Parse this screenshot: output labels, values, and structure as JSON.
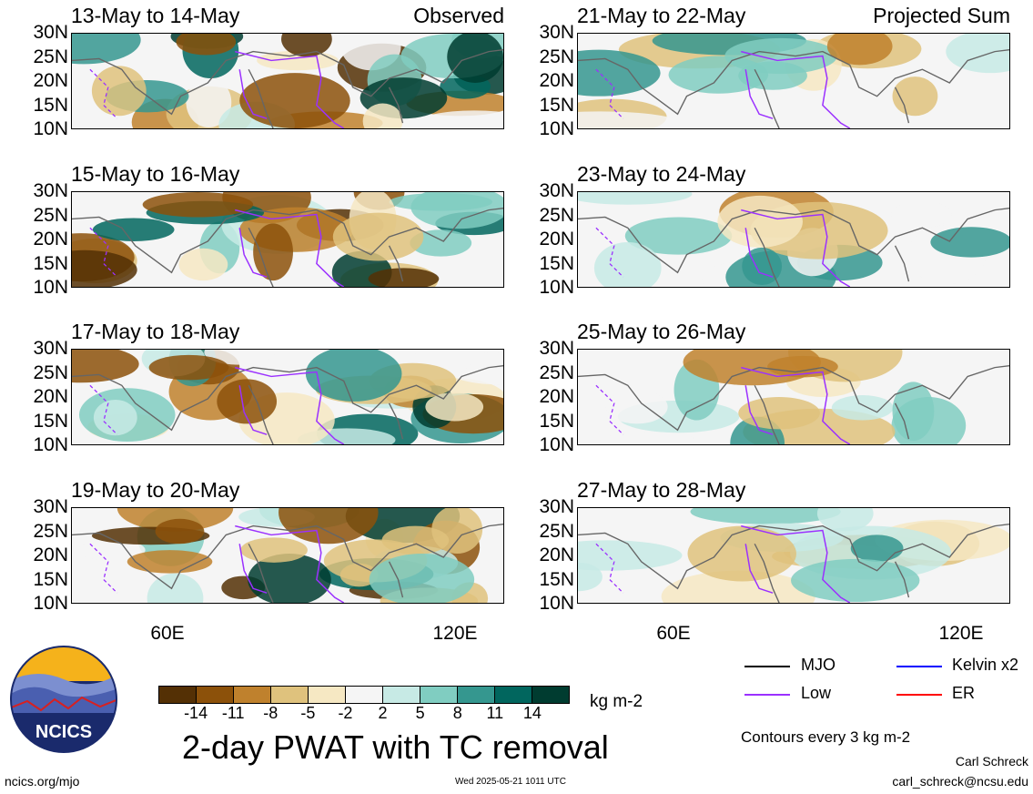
{
  "panels": [
    {
      "title": "13-May to 14-May",
      "tag": "Observed",
      "variant": "obs"
    },
    {
      "title": "15-May to 16-May",
      "tag": "",
      "variant": "obs"
    },
    {
      "title": "17-May to 18-May",
      "tag": "",
      "variant": "obs"
    },
    {
      "title": "19-May to 20-May",
      "tag": "",
      "variant": "obs"
    },
    {
      "title": "21-May to 22-May",
      "tag": "Projected Sum",
      "variant": "proj"
    },
    {
      "title": "23-May to 24-May",
      "tag": "",
      "variant": "proj"
    },
    {
      "title": "25-May to 26-May",
      "tag": "",
      "variant": "proj"
    },
    {
      "title": "27-May to 28-May",
      "tag": "",
      "variant": "proj"
    }
  ],
  "lat_labels": [
    "30N",
    "25N",
    "20N",
    "15N",
    "10N"
  ],
  "lon_labels": [
    "60E",
    "120E"
  ],
  "colorbar": {
    "colors": [
      "#543005",
      "#8c510a",
      "#bf812d",
      "#dfc27d",
      "#f6e8c3",
      "#f5f5f5",
      "#c7eae5",
      "#80cdc1",
      "#35978f",
      "#01665e",
      "#003c30"
    ],
    "ticks": [
      "-14",
      "-11",
      "-8",
      "-5",
      "-2",
      "2",
      "5",
      "8",
      "11",
      "14"
    ],
    "units": "kg m-2"
  },
  "title": "2-day PWAT with TC removal",
  "legend": [
    {
      "label": "MJO",
      "color": "#000000"
    },
    {
      "label": "Kelvin x2",
      "color": "#0000ff"
    },
    {
      "label": "Low",
      "color": "#9b30ff"
    },
    {
      "label": "ER",
      "color": "#ff0000"
    }
  ],
  "contour_note": "Contours every 3 kg m-2",
  "footer": {
    "site": "ncics.org/mjo",
    "timestamp": "Wed 2025-05-21 1011 UTC",
    "author": "Carl Schreck",
    "email": "carl_schreck@ncsu.edu"
  },
  "logo_text": "NCICS"
}
